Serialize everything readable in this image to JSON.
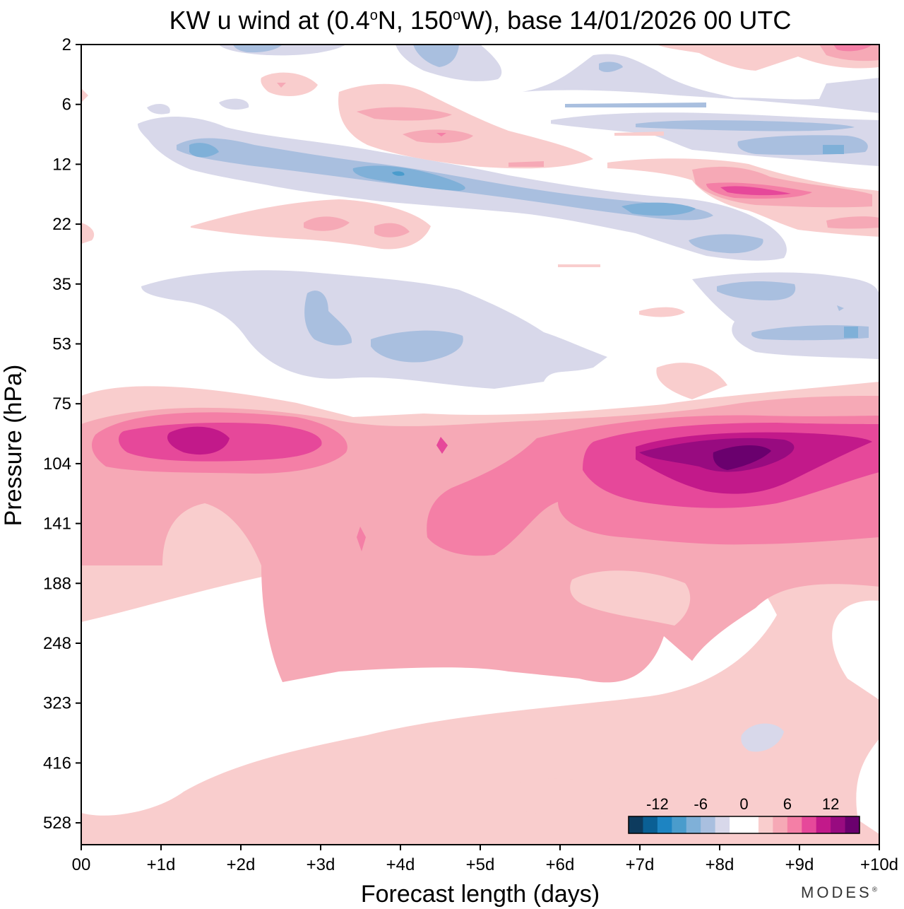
{
  "chart_data": {
    "type": "contour",
    "title": "KW u wind at (0.4°N, 150°W),  base 14/01/2026  00 UTC",
    "title_parts": {
      "prefix": "KW u wind at (0.4",
      "deg1": "o",
      "mid": "N, 150",
      "deg2": "o",
      "suffix": "W),  base 14/01/2026  00 UTC"
    },
    "xlabel": "Forecast length (days)",
    "ylabel": "Pressure (hPa)",
    "x_ticks": [
      "00",
      "+1d",
      "+2d",
      "+3d",
      "+4d",
      "+5d",
      "+6d",
      "+7d",
      "+8d",
      "+9d",
      "+10d"
    ],
    "x_range_days": [
      0,
      10
    ],
    "y_ticks": [
      "2",
      "6",
      "12",
      "22",
      "35",
      "53",
      "75",
      "104",
      "141",
      "188",
      "248",
      "323",
      "416",
      "528"
    ],
    "colorbar": {
      "labels": [
        "-12",
        "-6",
        "0",
        "6",
        "12"
      ],
      "levels": [
        -16,
        -14,
        -12,
        -10,
        -8,
        -6,
        -4,
        -2,
        0,
        2,
        4,
        6,
        8,
        10,
        12,
        14,
        16
      ],
      "colors": [
        "#0d3b5e",
        "#0a5f94",
        "#1d84c2",
        "#4a9ccc",
        "#7fb0d8",
        "#a9bfdf",
        "#d8d8ea",
        "#ffffff",
        "#ffffff",
        "#f9cdcd",
        "#f6a9b6",
        "#f47fa6",
        "#e6489a",
        "#c2198a",
        "#980b80",
        "#6a006e"
      ]
    },
    "features": [
      {
        "name": "weak-westerly-lower",
        "value_range": [
          2,
          4
        ],
        "days": [
          0,
          10
        ],
        "pressure_hPa": [
          75,
          528
        ]
      },
      {
        "name": "westerly-core-early",
        "value_range": [
          6,
          10
        ],
        "days": [
          0.3,
          3
        ],
        "pressure_hPa": [
          85,
          115
        ]
      },
      {
        "name": "westerly-max-late",
        "value_range": [
          14,
          16
        ],
        "days": [
          7.8,
          8.6
        ],
        "pressure_hPa": [
          95,
          110
        ]
      },
      {
        "name": "easterly-layer-upper",
        "value_range": [
          -12,
          -4
        ],
        "days": [
          1,
          10
        ],
        "pressure_hPa": [
          6,
          28
        ]
      },
      {
        "name": "easterly-layer-mid",
        "value_range": [
          -6,
          -2
        ],
        "days": [
          0.8,
          6.5
        ],
        "pressure_hPa": [
          32,
          60
        ]
      },
      {
        "name": "westerly-band-upper",
        "value_range": [
          2,
          10
        ],
        "days": [
          3.2,
          10
        ],
        "pressure_hPa": [
          6,
          22
        ]
      }
    ]
  },
  "credit": {
    "text": "MODES",
    "mark": "®"
  }
}
